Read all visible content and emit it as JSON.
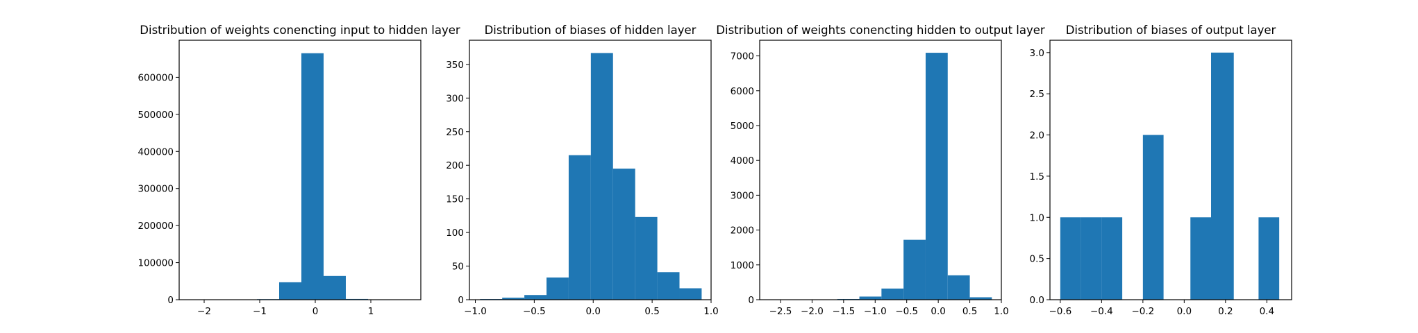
{
  "chart_data": [
    {
      "type": "bar",
      "title": "Distribution of weights conencting input to hidden layer",
      "xlim": [
        -2.45,
        1.9
      ],
      "ylim": [
        0,
        700000
      ],
      "xticks": [
        {
          "value": -2,
          "label": "−2"
        },
        {
          "value": -1,
          "label": "−1"
        },
        {
          "value": 0,
          "label": "0"
        },
        {
          "value": 1,
          "label": "1"
        }
      ],
      "yticks": [
        {
          "value": 0,
          "label": "0"
        },
        {
          "value": 100000,
          "label": "100000"
        },
        {
          "value": 200000,
          "label": "200000"
        },
        {
          "value": 300000,
          "label": "300000"
        },
        {
          "value": 400000,
          "label": "400000"
        },
        {
          "value": 500000,
          "label": "500000"
        },
        {
          "value": 600000,
          "label": "600000"
        }
      ],
      "bins": [
        {
          "x0": -2.25,
          "x1": -1.85,
          "value": 0
        },
        {
          "x0": -1.85,
          "x1": -1.45,
          "value": 0
        },
        {
          "x0": -1.45,
          "x1": -1.05,
          "value": 200
        },
        {
          "x0": -1.05,
          "x1": -0.65,
          "value": 1500
        },
        {
          "x0": -0.65,
          "x1": -0.25,
          "value": 47000
        },
        {
          "x0": -0.25,
          "x1": 0.15,
          "value": 665000
        },
        {
          "x0": 0.15,
          "x1": 0.55,
          "value": 64000
        },
        {
          "x0": 0.55,
          "x1": 0.95,
          "value": 2000
        },
        {
          "x0": 0.95,
          "x1": 1.35,
          "value": 100
        },
        {
          "x0": 1.35,
          "x1": 1.75,
          "value": 0
        }
      ]
    },
    {
      "type": "bar",
      "title": "Distribution of biases of hidden layer",
      "xlim": [
        -1.05,
        1.0
      ],
      "ylim": [
        0,
        386
      ],
      "xticks": [
        {
          "value": -1.0,
          "label": "−1.0"
        },
        {
          "value": -0.5,
          "label": "−0.5"
        },
        {
          "value": 0.0,
          "label": "0.0"
        },
        {
          "value": 0.5,
          "label": "0.5"
        },
        {
          "value": 1.0,
          "label": "1.0"
        }
      ],
      "yticks": [
        {
          "value": 0,
          "label": "0"
        },
        {
          "value": 50,
          "label": "50"
        },
        {
          "value": 100,
          "label": "100"
        },
        {
          "value": 150,
          "label": "150"
        },
        {
          "value": 200,
          "label": "200"
        },
        {
          "value": 250,
          "label": "250"
        },
        {
          "value": 300,
          "label": "300"
        },
        {
          "value": 350,
          "label": "350"
        }
      ],
      "bins": [
        {
          "x0": -0.96,
          "x1": -0.772,
          "value": 1
        },
        {
          "x0": -0.772,
          "x1": -0.584,
          "value": 3
        },
        {
          "x0": -0.584,
          "x1": -0.396,
          "value": 7
        },
        {
          "x0": -0.396,
          "x1": -0.208,
          "value": 33
        },
        {
          "x0": -0.208,
          "x1": -0.02,
          "value": 215
        },
        {
          "x0": -0.02,
          "x1": 0.168,
          "value": 367
        },
        {
          "x0": 0.168,
          "x1": 0.356,
          "value": 195
        },
        {
          "x0": 0.356,
          "x1": 0.544,
          "value": 123
        },
        {
          "x0": 0.544,
          "x1": 0.732,
          "value": 41
        },
        {
          "x0": 0.732,
          "x1": 0.92,
          "value": 17
        }
      ]
    },
    {
      "type": "bar",
      "title": "Distribution of weights conencting hidden to output layer",
      "xlim": [
        -2.83,
        1.0
      ],
      "ylim": [
        0,
        7450
      ],
      "xticks": [
        {
          "value": -2.5,
          "label": "−2.5"
        },
        {
          "value": -2.0,
          "label": "−2.0"
        },
        {
          "value": -1.5,
          "label": "−1.5"
        },
        {
          "value": -1.0,
          "label": "−1.0"
        },
        {
          "value": -0.5,
          "label": "−0.5"
        },
        {
          "value": 0.0,
          "label": "0.0"
        },
        {
          "value": 0.5,
          "label": "0.5"
        },
        {
          "value": 1.0,
          "label": "1.0"
        }
      ],
      "yticks": [
        {
          "value": 0,
          "label": "0"
        },
        {
          "value": 1000,
          "label": "1000"
        },
        {
          "value": 2000,
          "label": "2000"
        },
        {
          "value": 3000,
          "label": "3000"
        },
        {
          "value": 4000,
          "label": "4000"
        },
        {
          "value": 5000,
          "label": "5000"
        },
        {
          "value": 6000,
          "label": "6000"
        },
        {
          "value": 7000,
          "label": "7000"
        }
      ],
      "bins": [
        {
          "x0": -2.65,
          "x1": -2.3,
          "value": 0
        },
        {
          "x0": -2.3,
          "x1": -1.95,
          "value": 0
        },
        {
          "x0": -1.95,
          "x1": -1.6,
          "value": 0
        },
        {
          "x0": -1.6,
          "x1": -1.25,
          "value": 20
        },
        {
          "x0": -1.25,
          "x1": -0.9,
          "value": 90
        },
        {
          "x0": -0.9,
          "x1": -0.55,
          "value": 320
        },
        {
          "x0": -0.55,
          "x1": -0.2,
          "value": 1720
        },
        {
          "x0": -0.2,
          "x1": 0.15,
          "value": 7090
        },
        {
          "x0": 0.15,
          "x1": 0.5,
          "value": 700
        },
        {
          "x0": 0.5,
          "x1": 0.85,
          "value": 70
        }
      ]
    },
    {
      "type": "bar",
      "title": "Distribution of biases of output layer",
      "xlim": [
        -0.65,
        0.52
      ],
      "ylim": [
        0,
        3.15
      ],
      "xticks": [
        {
          "value": -0.6,
          "label": "−0.6"
        },
        {
          "value": -0.4,
          "label": "−0.4"
        },
        {
          "value": -0.2,
          "label": "−0.2"
        },
        {
          "value": 0.0,
          "label": "0.0"
        },
        {
          "value": 0.2,
          "label": "0.2"
        },
        {
          "value": 0.4,
          "label": "0.4"
        }
      ],
      "yticks": [
        {
          "value": 0,
          "label": "0.0"
        },
        {
          "value": 0.5,
          "label": "0.5"
        },
        {
          "value": 1.0,
          "label": "1.0"
        },
        {
          "value": 1.5,
          "label": "1.5"
        },
        {
          "value": 2.0,
          "label": "2.0"
        },
        {
          "value": 2.5,
          "label": "2.5"
        },
        {
          "value": 3.0,
          "label": "3.0"
        }
      ],
      "bins": [
        {
          "x0": -0.6,
          "x1": -0.5,
          "value": 1
        },
        {
          "x0": -0.5,
          "x1": -0.4,
          "value": 1
        },
        {
          "x0": -0.4,
          "x1": -0.3,
          "value": 1
        },
        {
          "x0": -0.3,
          "x1": -0.2,
          "value": 0
        },
        {
          "x0": -0.2,
          "x1": -0.1,
          "value": 2
        },
        {
          "x0": -0.1,
          "x1": 0.03,
          "value": 0
        },
        {
          "x0": 0.03,
          "x1": 0.13,
          "value": 1
        },
        {
          "x0": 0.13,
          "x1": 0.24,
          "value": 3
        },
        {
          "x0": 0.24,
          "x1": 0.36,
          "value": 0
        },
        {
          "x0": 0.36,
          "x1": 0.46,
          "value": 1
        }
      ]
    }
  ],
  "colors": {
    "bar": "#1f77b4",
    "axis": "#000000",
    "background": "#ffffff"
  }
}
